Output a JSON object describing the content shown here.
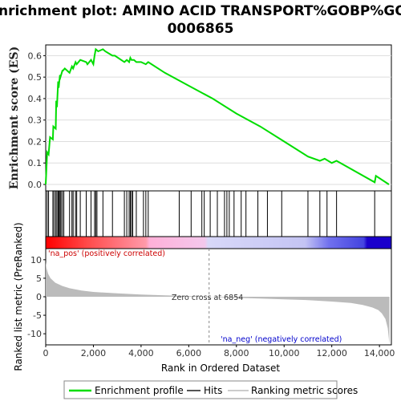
{
  "title_line1": "Enrichment plot: AMINO ACID TRANSPORT%GOBP%GO:",
  "title_line2": "0006865",
  "colors": {
    "es_line": "#00dd00",
    "hits": "#000000",
    "metric_fill": "#bbbbbb",
    "pos_text": "#cc0000",
    "neg_text": "#0000cc",
    "zero_line": "#888888"
  },
  "annotations": {
    "pos": "'na_pos' (positively correlated)",
    "neg": "'na_neg' (negatively correlated)",
    "zero_cross": "Zero cross at 6854"
  },
  "legend": {
    "es": "Enrichment profile",
    "hits": "Hits",
    "metric": "Ranking metric scores"
  },
  "chart_data": [
    {
      "type": "line",
      "name": "enrichment-profile",
      "ylabel": "Enrichment score (ES)",
      "xlim": [
        0,
        14500
      ],
      "ylim": [
        -0.03,
        0.65
      ],
      "yticks": [
        0.0,
        0.1,
        0.2,
        0.3,
        0.4,
        0.5,
        0.6
      ],
      "grid": true,
      "x": [
        0,
        60,
        120,
        180,
        300,
        320,
        420,
        440,
        470,
        520,
        540,
        600,
        620,
        700,
        720,
        800,
        1000,
        1100,
        1150,
        1250,
        1300,
        1450,
        1700,
        1750,
        1900,
        2000,
        2050,
        2100,
        2200,
        2400,
        2500,
        2800,
        2900,
        3300,
        3400,
        3500,
        3550,
        3600,
        3700,
        3800,
        4000,
        4200,
        4300,
        5000,
        6000,
        7000,
        8000,
        9000,
        10000,
        11000,
        11500,
        11700,
        12000,
        12200,
        13800,
        13850,
        14400
      ],
      "y": [
        0.0,
        0.15,
        0.14,
        0.22,
        0.21,
        0.27,
        0.26,
        0.39,
        0.36,
        0.48,
        0.45,
        0.51,
        0.5,
        0.53,
        0.53,
        0.54,
        0.52,
        0.55,
        0.54,
        0.57,
        0.56,
        0.58,
        0.57,
        0.56,
        0.58,
        0.56,
        0.6,
        0.63,
        0.62,
        0.63,
        0.62,
        0.6,
        0.6,
        0.57,
        0.58,
        0.57,
        0.59,
        0.58,
        0.58,
        0.57,
        0.57,
        0.56,
        0.57,
        0.52,
        0.46,
        0.4,
        0.33,
        0.27,
        0.2,
        0.13,
        0.11,
        0.12,
        0.1,
        0.11,
        0.01,
        0.04,
        0.0
      ]
    },
    {
      "type": "bar",
      "name": "hits",
      "x": [
        60,
        120,
        300,
        350,
        420,
        470,
        520,
        560,
        600,
        640,
        700,
        760,
        1000,
        1100,
        1150,
        1250,
        1300,
        1450,
        1700,
        1900,
        2050,
        2100,
        2150,
        2400,
        2800,
        3300,
        3400,
        3500,
        3550,
        3600,
        3650,
        3800,
        4100,
        4200,
        4300,
        5600,
        6100,
        6550,
        6650,
        6900,
        7200,
        7500,
        7600,
        7700,
        7900,
        8200,
        8400,
        8900,
        9300,
        9900,
        11000,
        11500,
        11800,
        12200,
        13800
      ]
    },
    {
      "type": "area",
      "name": "ranked-list-metric",
      "xlabel": "Rank in Ordered Dataset",
      "ylabel": "Ranked list metric (PreRanked)",
      "xlim": [
        0,
        14500
      ],
      "ylim": [
        -13,
        13
      ],
      "yticks": [
        -10,
        -5,
        0,
        5,
        10
      ],
      "xticks": [
        0,
        2000,
        4000,
        6000,
        8000,
        10000,
        12000,
        14000
      ],
      "xticklabels": [
        "0",
        "2,000",
        "4,000",
        "6,000",
        "8,000",
        "10,000",
        "12,000",
        "14,000"
      ],
      "zero_cross": 6854,
      "x": [
        0,
        30,
        100,
        200,
        400,
        700,
        1000,
        1500,
        2000,
        3000,
        4000,
        5000,
        6000,
        6854,
        8000,
        9000,
        10000,
        11000,
        12000,
        12800,
        13300,
        13700,
        13950,
        14100,
        14250,
        14350,
        14420
      ],
      "y": [
        9.5,
        7.8,
        6.2,
        5.0,
        3.8,
        2.9,
        2.3,
        1.7,
        1.3,
        0.9,
        0.6,
        0.4,
        0.2,
        0.0,
        -0.3,
        -0.5,
        -0.7,
        -0.9,
        -1.3,
        -1.7,
        -2.2,
        -2.9,
        -3.6,
        -4.5,
        -6.0,
        -8.5,
        -12.8
      ]
    }
  ]
}
